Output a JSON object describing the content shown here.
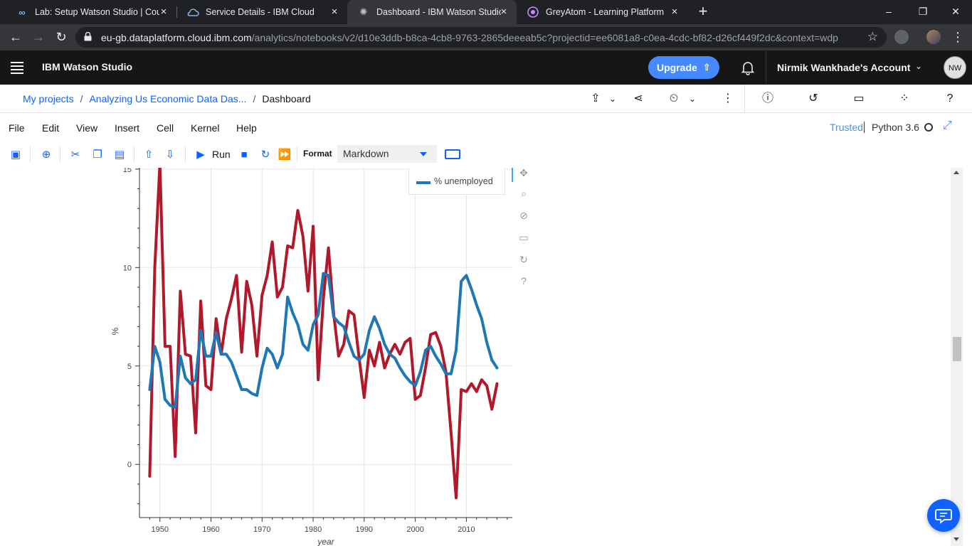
{
  "browser": {
    "tabs": [
      {
        "title": "Lab: Setup Watson Studio | Cours",
        "icon": "infinity-icon",
        "active": false
      },
      {
        "title": "Service Details - IBM Cloud",
        "icon": "ibm-cloud-icon",
        "active": false
      },
      {
        "title": "Dashboard - IBM Watson Studio",
        "icon": "watson-icon",
        "active": true
      },
      {
        "title": "GreyAtom - Learning Platform",
        "icon": "greyatom-icon",
        "active": false
      }
    ],
    "new_tab": "+",
    "window_controls": {
      "minimize": "–",
      "restore": "❐",
      "close": "✕"
    },
    "url_host": "eu-gb.dataplatform.cloud.ibm.com",
    "url_path": "/analytics/notebooks/v2/d10e3ddb-b8ca-4cb8-9763-2865deeeab5c?projectid=ee6081a8-c0ea-4cdc-bf82-d26cf449f2dc&context=wdp"
  },
  "header": {
    "brand": "IBM Watson Studio",
    "upgrade_label": "Upgrade",
    "account_name": "Nirmik Wankhade's Account",
    "avatar_initials": "NW"
  },
  "breadcrumb": {
    "items": [
      "My projects",
      "Analyzing Us Economic Data Das...",
      "Dashboard"
    ],
    "separator": "/"
  },
  "notebook": {
    "menu": [
      "File",
      "Edit",
      "View",
      "Insert",
      "Cell",
      "Kernel",
      "Help"
    ],
    "trusted_label": "Trusted",
    "kernel_name": "Python 3.6",
    "toolbar": {
      "run_label": "Run",
      "format_label": "Format",
      "cell_type": "Markdown"
    }
  },
  "colors": {
    "red_series": "#b2182b",
    "blue_series": "#1f77b4",
    "accent": "#0f62fe"
  },
  "chart_data": {
    "type": "line",
    "xlabel": "year",
    "ylabel": "%",
    "xlim": [
      1946,
      2019
    ],
    "ylim": [
      -2.7,
      15.5
    ],
    "xticks": [
      1950,
      1960,
      1970,
      1980,
      1990,
      2000,
      2010
    ],
    "yticks": [
      0,
      5,
      10,
      15
    ],
    "grid": true,
    "legend_position": "top-right",
    "x": [
      1948,
      1949,
      1950,
      1951,
      1952,
      1953,
      1954,
      1955,
      1956,
      1957,
      1958,
      1959,
      1960,
      1961,
      1962,
      1963,
      1964,
      1965,
      1966,
      1967,
      1968,
      1969,
      1970,
      1971,
      1972,
      1973,
      1974,
      1975,
      1976,
      1977,
      1978,
      1979,
      1980,
      1981,
      1982,
      1983,
      1984,
      1985,
      1986,
      1987,
      1988,
      1989,
      1990,
      1991,
      1992,
      1993,
      1994,
      1995,
      1996,
      1997,
      1998,
      1999,
      2000,
      2001,
      2002,
      2003,
      2004,
      2005,
      2006,
      2007,
      2008,
      2009,
      2010,
      2011,
      2012,
      2013,
      2014,
      2015,
      2016
    ],
    "series": [
      {
        "name": "",
        "color": "#b2182b",
        "values": [
          -0.6,
          10.0,
          15.3,
          6.0,
          6.0,
          0.4,
          8.8,
          5.6,
          5.5,
          1.6,
          8.3,
          4.0,
          3.8,
          7.4,
          5.6,
          7.4,
          8.4,
          9.6,
          5.7,
          9.3,
          8.1,
          5.5,
          8.6,
          9.6,
          11.3,
          8.5,
          9.0,
          11.1,
          11.0,
          12.9,
          11.6,
          8.8,
          12.1,
          4.3,
          8.4,
          11.0,
          7.7,
          5.5,
          6.1,
          7.8,
          7.6,
          5.4,
          3.4,
          5.8,
          5.0,
          6.2,
          4.9,
          5.6,
          6.1,
          5.6,
          6.2,
          6.4,
          3.3,
          3.5,
          4.9,
          6.6,
          6.7,
          6.0,
          4.7,
          1.6,
          -1.7,
          3.8,
          3.7,
          4.1,
          3.7,
          4.3,
          4.0,
          2.8,
          4.1
        ]
      },
      {
        "name": "% unemployed",
        "color": "#1f77b4",
        "values": [
          3.8,
          6.0,
          5.2,
          3.3,
          3.0,
          2.9,
          5.5,
          4.4,
          4.1,
          4.3,
          6.8,
          5.5,
          5.5,
          6.7,
          5.6,
          5.6,
          5.2,
          4.5,
          3.8,
          3.8,
          3.6,
          3.5,
          4.9,
          5.9,
          5.6,
          4.9,
          5.6,
          8.5,
          7.7,
          7.1,
          6.1,
          5.8,
          7.1,
          7.6,
          9.7,
          9.6,
          7.5,
          7.2,
          7.0,
          6.2,
          5.5,
          5.3,
          5.6,
          6.8,
          7.5,
          6.9,
          6.1,
          5.6,
          5.4,
          4.9,
          4.5,
          4.2,
          4.0,
          4.7,
          5.8,
          6.0,
          5.5,
          5.1,
          4.6,
          4.6,
          5.8,
          9.3,
          9.6,
          8.9,
          8.1,
          7.4,
          6.2,
          5.3,
          4.9
        ]
      }
    ]
  }
}
